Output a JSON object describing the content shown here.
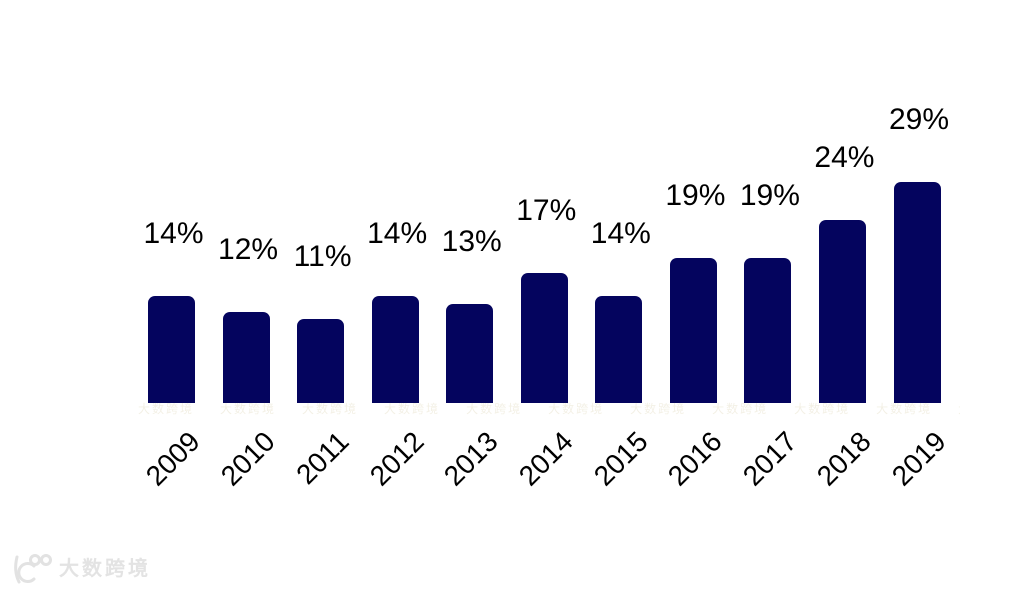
{
  "chart_data": {
    "type": "bar",
    "title": "",
    "xlabel": "",
    "ylabel": "",
    "categories": [
      "2009",
      "2010",
      "2011",
      "2012",
      "2013",
      "2014",
      "2015",
      "2016",
      "2017",
      "2018",
      "2019"
    ],
    "values": [
      14,
      12,
      11,
      14,
      13,
      17,
      14,
      19,
      19,
      24,
      29
    ],
    "value_suffix": "%",
    "ylim": [
      0,
      32
    ],
    "grid": false,
    "legend": false,
    "axis_visible": false,
    "x_tick_rotation": -45,
    "bar_color": "#04045E",
    "value_label_color": "#000000",
    "tick_label_color": "#000000"
  },
  "watermark": {
    "brand_text": "大数跨境",
    "brand_color": "#e3e3e3",
    "logo_icon": "k100-logo",
    "strip_text": "大数跨境",
    "strip_repeat": 14
  }
}
